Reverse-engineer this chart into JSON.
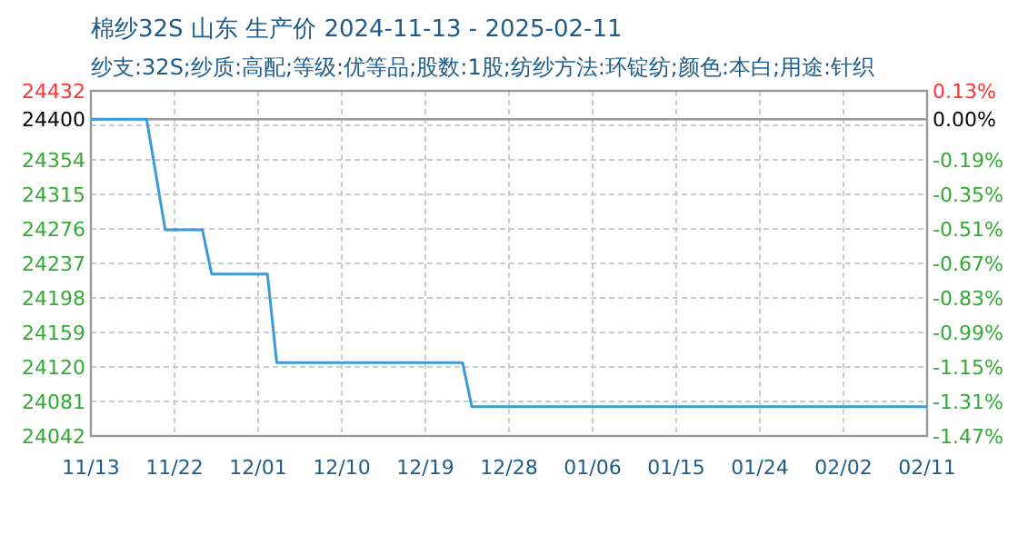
{
  "chart_data": {
    "type": "line",
    "title": "棉纱32S 山东 生产价 2024-11-13 - 2025-02-11",
    "subtitle": "纱支:32S;纱质:高配;等级:优等品;股数:1股;纺纱方法:环锭纺;颜色:本白;用途:针织",
    "x": [
      "2024-11-13",
      "2024-11-19",
      "2024-11-21",
      "2024-11-25",
      "2024-11-26",
      "2024-12-02",
      "2024-12-03",
      "2024-12-23",
      "2024-12-24",
      "2025-02-11"
    ],
    "series": [
      {
        "color": "#3c9ad8",
        "values": [
          24400,
          24400,
          24275,
          24275,
          24225,
          24225,
          24125,
          24125,
          24075,
          24075
        ]
      }
    ],
    "xlim": [
      "2024-11-13",
      "2025-02-11"
    ],
    "xticks": [
      {
        "value": "2024-11-13",
        "label": "11/13"
      },
      {
        "value": "2024-11-22",
        "label": "11/22"
      },
      {
        "value": "2024-12-01",
        "label": "12/01"
      },
      {
        "value": "2024-12-10",
        "label": "12/10"
      },
      {
        "value": "2024-12-19",
        "label": "12/19"
      },
      {
        "value": "2024-12-28",
        "label": "12/28"
      },
      {
        "value": "2025-01-06",
        "label": "01/06"
      },
      {
        "value": "2025-01-15",
        "label": "01/15"
      },
      {
        "value": "2025-01-24",
        "label": "01/24"
      },
      {
        "value": "2025-02-02",
        "label": "02/02"
      },
      {
        "value": "2025-02-11",
        "label": "02/11"
      }
    ],
    "ylim": [
      24042,
      24432
    ],
    "yticks": [
      24042,
      24081,
      24120,
      24159,
      24198,
      24237,
      24276,
      24315,
      24354,
      {
        "value": 24393,
        "label": null
      },
      24400,
      24432
    ],
    "y2lim": [
      -1.47,
      0.13
    ],
    "y2ticks": [
      {
        "value": -1.47,
        "label": "-1.47%"
      },
      {
        "value": -1.31,
        "label": "-1.31%"
      },
      {
        "value": -1.15,
        "label": "-1.15%"
      },
      {
        "value": -0.99,
        "label": "-0.99%"
      },
      {
        "value": -0.83,
        "label": "-0.83%"
      },
      {
        "value": -0.67,
        "label": "-0.67%"
      },
      {
        "value": -0.51,
        "label": "-0.51%"
      },
      {
        "value": -0.35,
        "label": "-0.35%"
      },
      {
        "value": -0.19,
        "label": "-0.19%"
      },
      {
        "value": 0,
        "label": "0.00%"
      },
      {
        "value": 0.13,
        "label": "0.13%"
      }
    ],
    "ref_lines": [
      {
        "axis": "y",
        "value": 24400,
        "color": "#999999"
      }
    ],
    "grid": true,
    "marker": "none"
  }
}
